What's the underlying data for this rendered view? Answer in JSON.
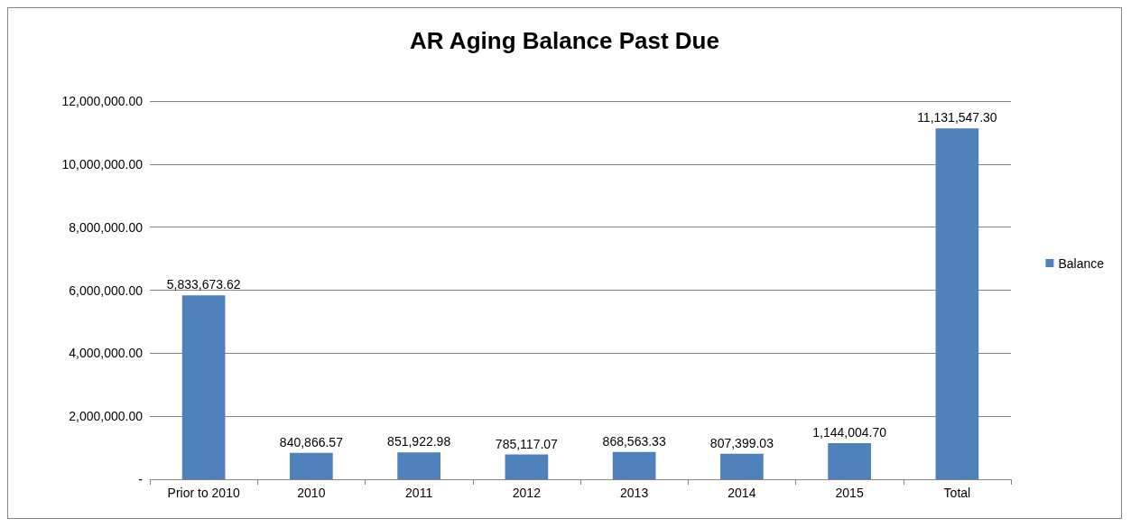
{
  "chart_data": {
    "type": "bar",
    "title": "AR Aging Balance Past Due",
    "categories": [
      "Prior to 2010",
      "2010",
      "2011",
      "2012",
      "2013",
      "2014",
      "2015",
      "Total"
    ],
    "series": [
      {
        "name": "Balance",
        "color": "#4f81bd",
        "values": [
          5833673.62,
          840866.57,
          851922.98,
          785117.07,
          868563.33,
          807399.03,
          1144004.7,
          11131547.3
        ],
        "value_labels": [
          "5,833,673.62",
          "840,866.57",
          "851,922.98",
          "785,117.07",
          "868,563.33",
          "807,399.03",
          "1,144,004.70",
          "11,131,547.30"
        ]
      }
    ],
    "ylim": [
      0,
      12000000
    ],
    "yticks": [
      {
        "value": 0,
        "label": "-"
      },
      {
        "value": 2000000,
        "label": "2,000,000.00"
      },
      {
        "value": 4000000,
        "label": "4,000,000.00"
      },
      {
        "value": 6000000,
        "label": "6,000,000.00"
      },
      {
        "value": 8000000,
        "label": "8,000,000.00"
      },
      {
        "value": 10000000,
        "label": "10,000,000.00"
      },
      {
        "value": 12000000,
        "label": "12,000,000.00"
      }
    ],
    "grid": "y",
    "legend": "right"
  }
}
